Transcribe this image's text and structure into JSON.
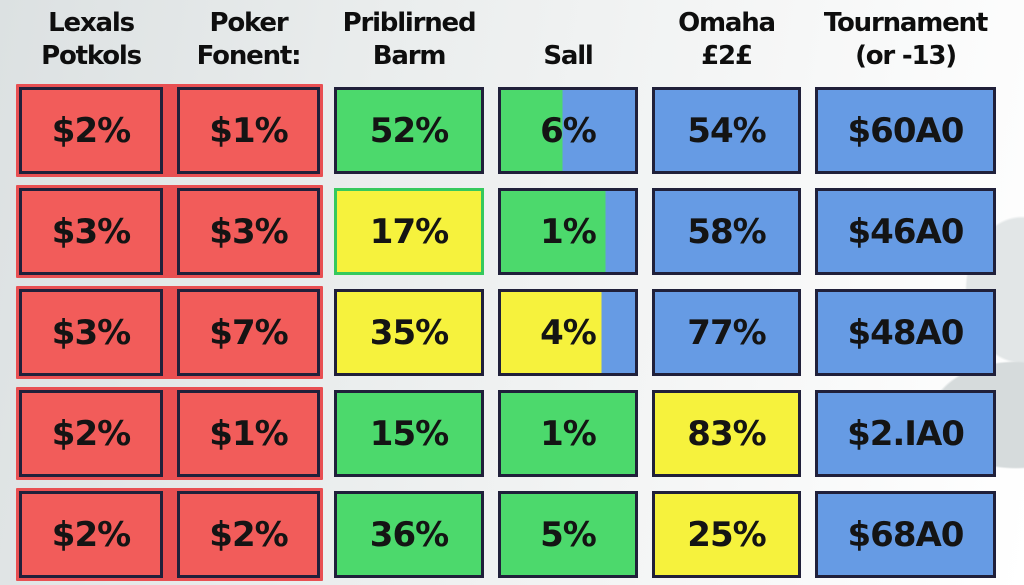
{
  "palette": {
    "red": "#f25c5a",
    "red_backdrop": "#e84f52",
    "green": "#4cd96c",
    "yellow": "#f6f23d",
    "blue": "#669be4",
    "cell_border": "#20203a",
    "green_border": "#35c95d",
    "text": "#141414"
  },
  "table": {
    "headers": [
      {
        "line1": "Lexals",
        "line2": "Potkols"
      },
      {
        "line1": "Poker",
        "line2": "Fonent:"
      },
      {
        "line1": "Priblirned",
        "line2": "Barm"
      },
      {
        "line1": "",
        "line2": "Sall"
      },
      {
        "line1": "Omaha",
        "line2": "£2£"
      },
      {
        "line1": "Tournament",
        "line2": "(or -13)"
      }
    ],
    "rows": [
      [
        {
          "value": "$2%",
          "fill": "red"
        },
        {
          "value": "$1%",
          "fill": "red"
        },
        {
          "value": "52%",
          "fill": "green"
        },
        {
          "value": "6%",
          "fill": "green",
          "fill2": "blue",
          "split": 46
        },
        {
          "value": "54%",
          "fill": "blue"
        },
        {
          "value": "$60A0",
          "fill": "blue"
        }
      ],
      [
        {
          "value": "$3%",
          "fill": "red"
        },
        {
          "value": "$3%",
          "fill": "red"
        },
        {
          "value": "17%",
          "fill": "yellow",
          "border": "green"
        },
        {
          "value": "1%",
          "fill": "green",
          "fill2": "blue",
          "split": 78
        },
        {
          "value": "58%",
          "fill": "blue"
        },
        {
          "value": "$46A0",
          "fill": "blue"
        }
      ],
      [
        {
          "value": "$3%",
          "fill": "red"
        },
        {
          "value": "$7%",
          "fill": "red"
        },
        {
          "value": "35%",
          "fill": "yellow"
        },
        {
          "value": "4%",
          "fill": "yellow",
          "fill2": "blue",
          "split": 75
        },
        {
          "value": "77%",
          "fill": "blue"
        },
        {
          "value": "$48A0",
          "fill": "blue"
        }
      ],
      [
        {
          "value": "$2%",
          "fill": "red"
        },
        {
          "value": "$1%",
          "fill": "red"
        },
        {
          "value": "15%",
          "fill": "green"
        },
        {
          "value": "1%",
          "fill": "green"
        },
        {
          "value": "83%",
          "fill": "yellow"
        },
        {
          "value": "$2.IA0",
          "fill": "blue"
        }
      ],
      [
        {
          "value": "$2%",
          "fill": "red"
        },
        {
          "value": "$2%",
          "fill": "red"
        },
        {
          "value": "36%",
          "fill": "green"
        },
        {
          "value": "5%",
          "fill": "green"
        },
        {
          "value": "25%",
          "fill": "yellow"
        },
        {
          "value": "$68A0",
          "fill": "blue"
        }
      ]
    ]
  },
  "chart_data": {
    "type": "table",
    "columns": [
      "Lexals Potkols",
      "Poker Fonent:",
      "Priblirned Barm",
      "Sall",
      "Omaha £2£",
      "Tournament (or -13)"
    ],
    "rows": [
      [
        "$2%",
        "$1%",
        "52%",
        "6%",
        "54%",
        "$60A0"
      ],
      [
        "$3%",
        "$3%",
        "17%",
        "1%",
        "58%",
        "$46A0"
      ],
      [
        "$3%",
        "$7%",
        "35%",
        "4%",
        "77%",
        "$48A0"
      ],
      [
        "$2%",
        "$1%",
        "15%",
        "1%",
        "83%",
        "$2.IA0"
      ],
      [
        "$2%",
        "$2%",
        "36%",
        "5%",
        "25%",
        "$68A0"
      ]
    ],
    "cell_colors": [
      [
        "red",
        "red",
        "green",
        "green/blue",
        "blue",
        "blue"
      ],
      [
        "red",
        "red",
        "yellow",
        "green/blue",
        "blue",
        "blue"
      ],
      [
        "red",
        "red",
        "yellow",
        "yellow/blue",
        "blue",
        "blue"
      ],
      [
        "red",
        "red",
        "green",
        "green",
        "yellow",
        "blue"
      ],
      [
        "red",
        "red",
        "green",
        "green",
        "yellow",
        "blue"
      ]
    ],
    "legend_position": "none",
    "grid": false
  }
}
